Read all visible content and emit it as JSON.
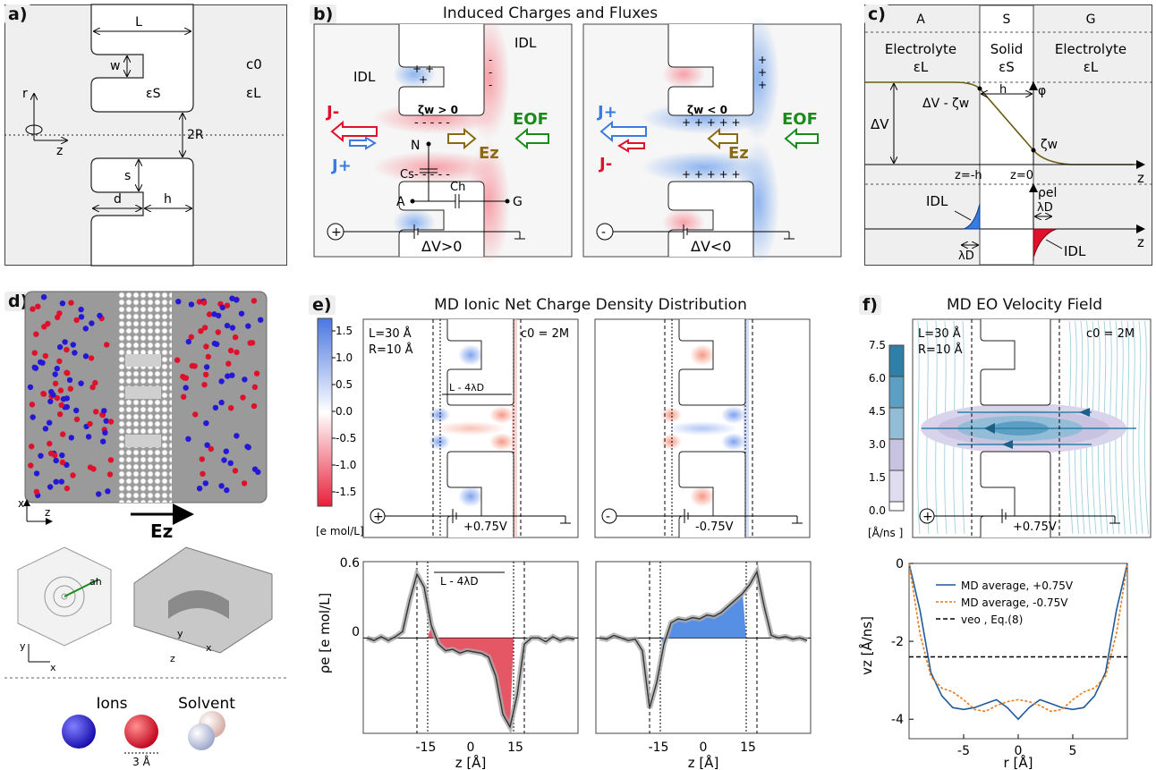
{
  "panel_a": {
    "tag": "a)",
    "labels": {
      "L": "L",
      "w": "w",
      "eps_s": "εS",
      "c0": "c0",
      "eps_l": "εL",
      "r": "r",
      "z": "z",
      "twoR": "2R",
      "s": "s",
      "d": "d",
      "h": "h"
    }
  },
  "panel_b": {
    "tag": "b)",
    "title": "Induced Charges and Fluxes",
    "left": {
      "idl1": "IDL",
      "idl2": "IDL",
      "zeta": "ζw > 0",
      "j_minus": "J-",
      "j_plus": "J+",
      "eof": "EOF",
      "n": "N",
      "ez": "Ez",
      "cs": "Cs",
      "ch": "Ch",
      "a": "A",
      "g": "G",
      "source": "+",
      "dv": "ΔV>0"
    },
    "right": {
      "zeta": "ζw < 0",
      "j_plus": "J+",
      "j_minus": "J-",
      "eof": "EOF",
      "ez": "Ez",
      "source": "-",
      "dv": "ΔV<0"
    }
  },
  "panel_c": {
    "tag": "c)",
    "cols": [
      "A",
      "S",
      "G"
    ],
    "electrolyte": "Electrolyte",
    "solid": "Solid",
    "eps_l": "εL",
    "eps_s": "εS",
    "h": "h",
    "phi": "φ",
    "dv": "ΔV",
    "dv_zeta": "ΔV - ζw",
    "zeta": "ζw",
    "zmh": "z=-h",
    "z0": "z=0",
    "z": "z",
    "rho": "ρel",
    "lambda": "λD",
    "idl": "IDL"
  },
  "panel_d": {
    "tag": "d)",
    "axes": {
      "x": "x",
      "z": "z",
      "y": "y",
      "ez": "Ez",
      "ah": "ah"
    },
    "ions": "Ions",
    "solvent": "Solvent",
    "scale": "3 Å",
    "colors": {
      "anion": "#2418d6",
      "cation": "#e0102a"
    }
  },
  "panel_e": {
    "tag": "e)",
    "title": "MD Ionic Net Charge Density Distribution",
    "l_label": "L=30 Å",
    "r_label": "R=10 Å",
    "c_label": "c0 = 2M",
    "span_label": "L - 4λD",
    "colorbar": {
      "ticks": [
        "1.5",
        "1.0",
        "0.5",
        "0.0",
        "-0.5",
        "-1.0",
        "-1.5"
      ],
      "unit": "[e mol/L]"
    },
    "left_v": "+0.75V",
    "right_v": "-0.75V",
    "left_sign": "+",
    "right_sign": "-",
    "ylabel": "ρe [e mol/L]",
    "xlabel": "z [Å]",
    "yticks": [
      "0.6",
      "0"
    ],
    "xticks": [
      "-15",
      "0",
      "15"
    ]
  },
  "panel_f": {
    "tag": "f)",
    "title": "MD EO Velocity Field",
    "l_label": "L=30 Å",
    "r_label": "R=10 Å",
    "c_label": "c0 = 2M",
    "colorbar": {
      "ticks": [
        "7.5",
        "6.0",
        "4.5",
        "3.0",
        "1.5",
        "0.0"
      ],
      "unit": "[Å/ns ]"
    },
    "v_label": "+0.75V",
    "sign": "+"
  },
  "chart_data": [
    {
      "type": "line",
      "title": "",
      "xlabel": "z [Å]",
      "ylabel": "ρe [e mol/L]",
      "xlim": [
        -30,
        30
      ],
      "ylim": [
        -0.75,
        0.6
      ],
      "series": [
        {
          "name": "",
          "x": [
            -29,
            -27,
            -25,
            -23,
            -21,
            -19,
            -17,
            -15,
            -13,
            -11,
            -9,
            -7,
            -5,
            -3,
            -1,
            1,
            3,
            5,
            7,
            9,
            11,
            13,
            15,
            17,
            19,
            21,
            23,
            25,
            27,
            29
          ],
          "y": [
            0.0,
            -0.02,
            0.01,
            -0.02,
            0.01,
            0.05,
            0.3,
            0.5,
            0.4,
            0.1,
            -0.05,
            -0.1,
            -0.09,
            -0.12,
            -0.1,
            -0.11,
            -0.12,
            -0.15,
            -0.3,
            -0.6,
            -0.7,
            -0.45,
            -0.05,
            0.0,
            0.0,
            -0.03,
            0.01,
            -0.02,
            0.0,
            -0.01
          ]
        }
      ]
    },
    {
      "type": "line",
      "title": "",
      "xlabel": "z [Å]",
      "ylabel": "",
      "xlim": [
        -30,
        30
      ],
      "ylim": [
        -0.75,
        0.6
      ],
      "series": [
        {
          "name": "",
          "x": [
            -29,
            -27,
            -25,
            -23,
            -21,
            -19,
            -17,
            -15,
            -13,
            -11,
            -9,
            -7,
            -5,
            -3,
            -1,
            1,
            3,
            5,
            7,
            9,
            11,
            13,
            15,
            17,
            19,
            21,
            23,
            25,
            27,
            29
          ],
          "y": [
            0.0,
            -0.01,
            0.02,
            0.0,
            -0.02,
            -0.01,
            -0.1,
            -0.55,
            -0.35,
            -0.05,
            0.12,
            0.15,
            0.14,
            0.16,
            0.15,
            0.18,
            0.17,
            0.2,
            0.25,
            0.3,
            0.35,
            0.42,
            0.52,
            0.25,
            0.02,
            0.0,
            0.01,
            -0.01,
            0.0,
            -0.02
          ]
        }
      ]
    },
    {
      "type": "line",
      "title": "",
      "xlabel": "r [Å]",
      "ylabel": "vz [Å/ns]",
      "xlim": [
        -10,
        10
      ],
      "ylim": [
        -4.5,
        0
      ],
      "xticks": [
        -5,
        0,
        5
      ],
      "yticks": [
        0,
        -2,
        -4
      ],
      "legend": "top-center",
      "series": [
        {
          "name": "MD average, +0.75V",
          "x": [
            -10,
            -9,
            -8,
            -7,
            -6,
            -5,
            -4,
            -3,
            -2,
            -1,
            0,
            1,
            2,
            3,
            4,
            5,
            6,
            7,
            8,
            9,
            10
          ],
          "y": [
            0,
            -1.2,
            -2.8,
            -3.4,
            -3.7,
            -3.75,
            -3.7,
            -3.6,
            -3.5,
            -3.7,
            -4.0,
            -3.7,
            -3.5,
            -3.6,
            -3.7,
            -3.75,
            -3.7,
            -3.4,
            -2.8,
            -1.2,
            0
          ]
        },
        {
          "name": "MD average, -0.75V",
          "x": [
            -10,
            -9,
            -8,
            -7,
            -6,
            -5,
            -4,
            -3,
            -2,
            -1,
            0,
            1,
            2,
            3,
            4,
            5,
            6,
            7,
            8,
            9,
            10
          ],
          "y": [
            0,
            -1.8,
            -2.9,
            -3.2,
            -3.3,
            -3.5,
            -3.75,
            -3.8,
            -3.65,
            -3.55,
            -3.5,
            -3.55,
            -3.65,
            -3.8,
            -3.75,
            -3.5,
            -3.3,
            -3.2,
            -2.9,
            -1.8,
            0
          ]
        },
        {
          "name": "veo , Eq.(8)",
          "x": [
            -10,
            10
          ],
          "y": [
            -2.4,
            -2.4
          ]
        }
      ]
    }
  ]
}
